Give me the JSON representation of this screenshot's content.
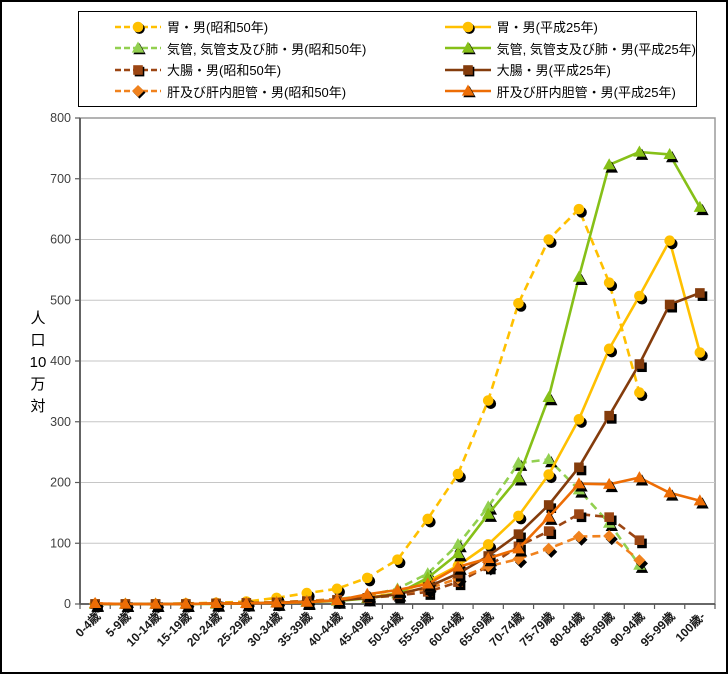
{
  "figure": {
    "background": "#ffffff",
    "border_color": "#000000"
  },
  "legend": {
    "position": "top",
    "border_color": "#000000",
    "columns": [
      [
        0,
        1,
        2,
        3
      ],
      [
        4,
        5,
        6,
        7
      ]
    ]
  },
  "y_axis": {
    "title": "人口10万対",
    "title_stack": [
      "人",
      "口",
      "10",
      "万",
      "対"
    ],
    "tick_labels": [
      "0",
      "100",
      "200",
      "300",
      "400",
      "500",
      "600",
      "700",
      "800"
    ],
    "min": 0,
    "max": 800
  },
  "x_axis": {
    "label_rotation": -45,
    "categories": [
      "0-4歳",
      "5-9歳",
      "10-14歳",
      "15-19歳",
      "20-24歳",
      "25-29歳",
      "30-34歳",
      "35-39歳",
      "40-44歳",
      "45-49歳",
      "50-54歳",
      "55-59歳",
      "60-64歳",
      "65-69歳",
      "70-74歳",
      "75-79歳",
      "80-84歳",
      "85-89歳",
      "90-94歳",
      "95-99歳",
      "100歳-"
    ]
  },
  "chart_data": {
    "type": "line",
    "title": "",
    "xlabel": "",
    "ylabel": "人口10万対",
    "ylim": [
      0,
      800
    ],
    "grid": "horizontal-100",
    "legend_position": "top",
    "x_categories": [
      "0-4歳",
      "5-9歳",
      "10-14歳",
      "15-19歳",
      "20-24歳",
      "25-29歳",
      "30-34歳",
      "35-39歳",
      "40-44歳",
      "45-49歳",
      "50-54歳",
      "55-59歳",
      "60-64歳",
      "65-69歳",
      "70-74歳",
      "75-79歳",
      "80-84歳",
      "85-89歳",
      "90-94歳",
      "95-99歳",
      "100歳-"
    ],
    "series": [
      {
        "name": "胃・男(昭和50年)",
        "era": "昭和50年",
        "color": "#FFC000",
        "line_style": "dashed",
        "marker": "circle",
        "values": [
          0,
          0,
          0,
          1,
          2,
          4,
          10,
          18,
          25,
          43,
          73,
          140,
          214,
          335,
          495,
          600,
          650,
          529,
          348,
          null,
          null
        ]
      },
      {
        "name": "気管, 気管支及び肺・男(昭和50年)",
        "era": "昭和50年",
        "color": "#92D050",
        "line_style": "dashed",
        "marker": "triangle",
        "values": [
          0,
          0,
          0,
          0,
          1,
          1,
          2,
          5,
          8,
          14,
          25,
          50,
          98,
          160,
          232,
          238,
          188,
          133,
          64,
          null,
          null
        ]
      },
      {
        "name": "大腸・男(昭和50年)",
        "era": "昭和50年",
        "color": "#9C4613",
        "line_style": "dashed",
        "marker": "square",
        "values": [
          0,
          0,
          0,
          0,
          1,
          2,
          3,
          5,
          7,
          10,
          14,
          20,
          36,
          62,
          95,
          120,
          148,
          143,
          105,
          null,
          null
        ]
      },
      {
        "name": "肝及び肝内胆管・男(昭和50年)",
        "era": "昭和50年",
        "color": "#F0821E",
        "line_style": "dashed",
        "marker": "diamond",
        "values": [
          1,
          0,
          0,
          1,
          1,
          2,
          3,
          5,
          8,
          12,
          17,
          25,
          42,
          62,
          74,
          91,
          111,
          112,
          72,
          null,
          null
        ]
      },
      {
        "name": "胃・男(平成25年)",
        "era": "平成25年",
        "color": "#FFC000",
        "line_style": "solid",
        "marker": "circle",
        "values": [
          0,
          0,
          0,
          0,
          1,
          1,
          2,
          4,
          6,
          10,
          18,
          37,
          63,
          98,
          145,
          213,
          304,
          420,
          507,
          598,
          414
        ]
      },
      {
        "name": "気管, 気管支及び肺・男(平成25年)",
        "era": "平成25年",
        "color": "#86C018",
        "line_style": "solid",
        "marker": "triangle",
        "values": [
          0,
          0,
          0,
          0,
          0,
          1,
          2,
          3,
          5,
          9,
          17,
          43,
          83,
          148,
          208,
          340,
          538,
          723,
          744,
          740,
          653
        ]
      },
      {
        "name": "大腸・男(平成25年)",
        "era": "平成25年",
        "color": "#843C0C",
        "line_style": "solid",
        "marker": "square",
        "values": [
          0,
          0,
          0,
          0,
          1,
          1,
          2,
          4,
          6,
          10,
          16,
          28,
          50,
          79,
          115,
          163,
          225,
          310,
          395,
          493,
          512
        ]
      },
      {
        "name": "肝及び肝内胆管・男(平成25年)",
        "era": "平成25年",
        "color": "#ED6D05",
        "line_style": "solid",
        "marker": "triangle",
        "values": [
          1,
          0,
          0,
          0,
          1,
          1,
          2,
          3,
          6,
          16,
          23,
          33,
          61,
          75,
          91,
          143,
          198,
          197,
          208,
          183,
          170
        ]
      }
    ]
  }
}
